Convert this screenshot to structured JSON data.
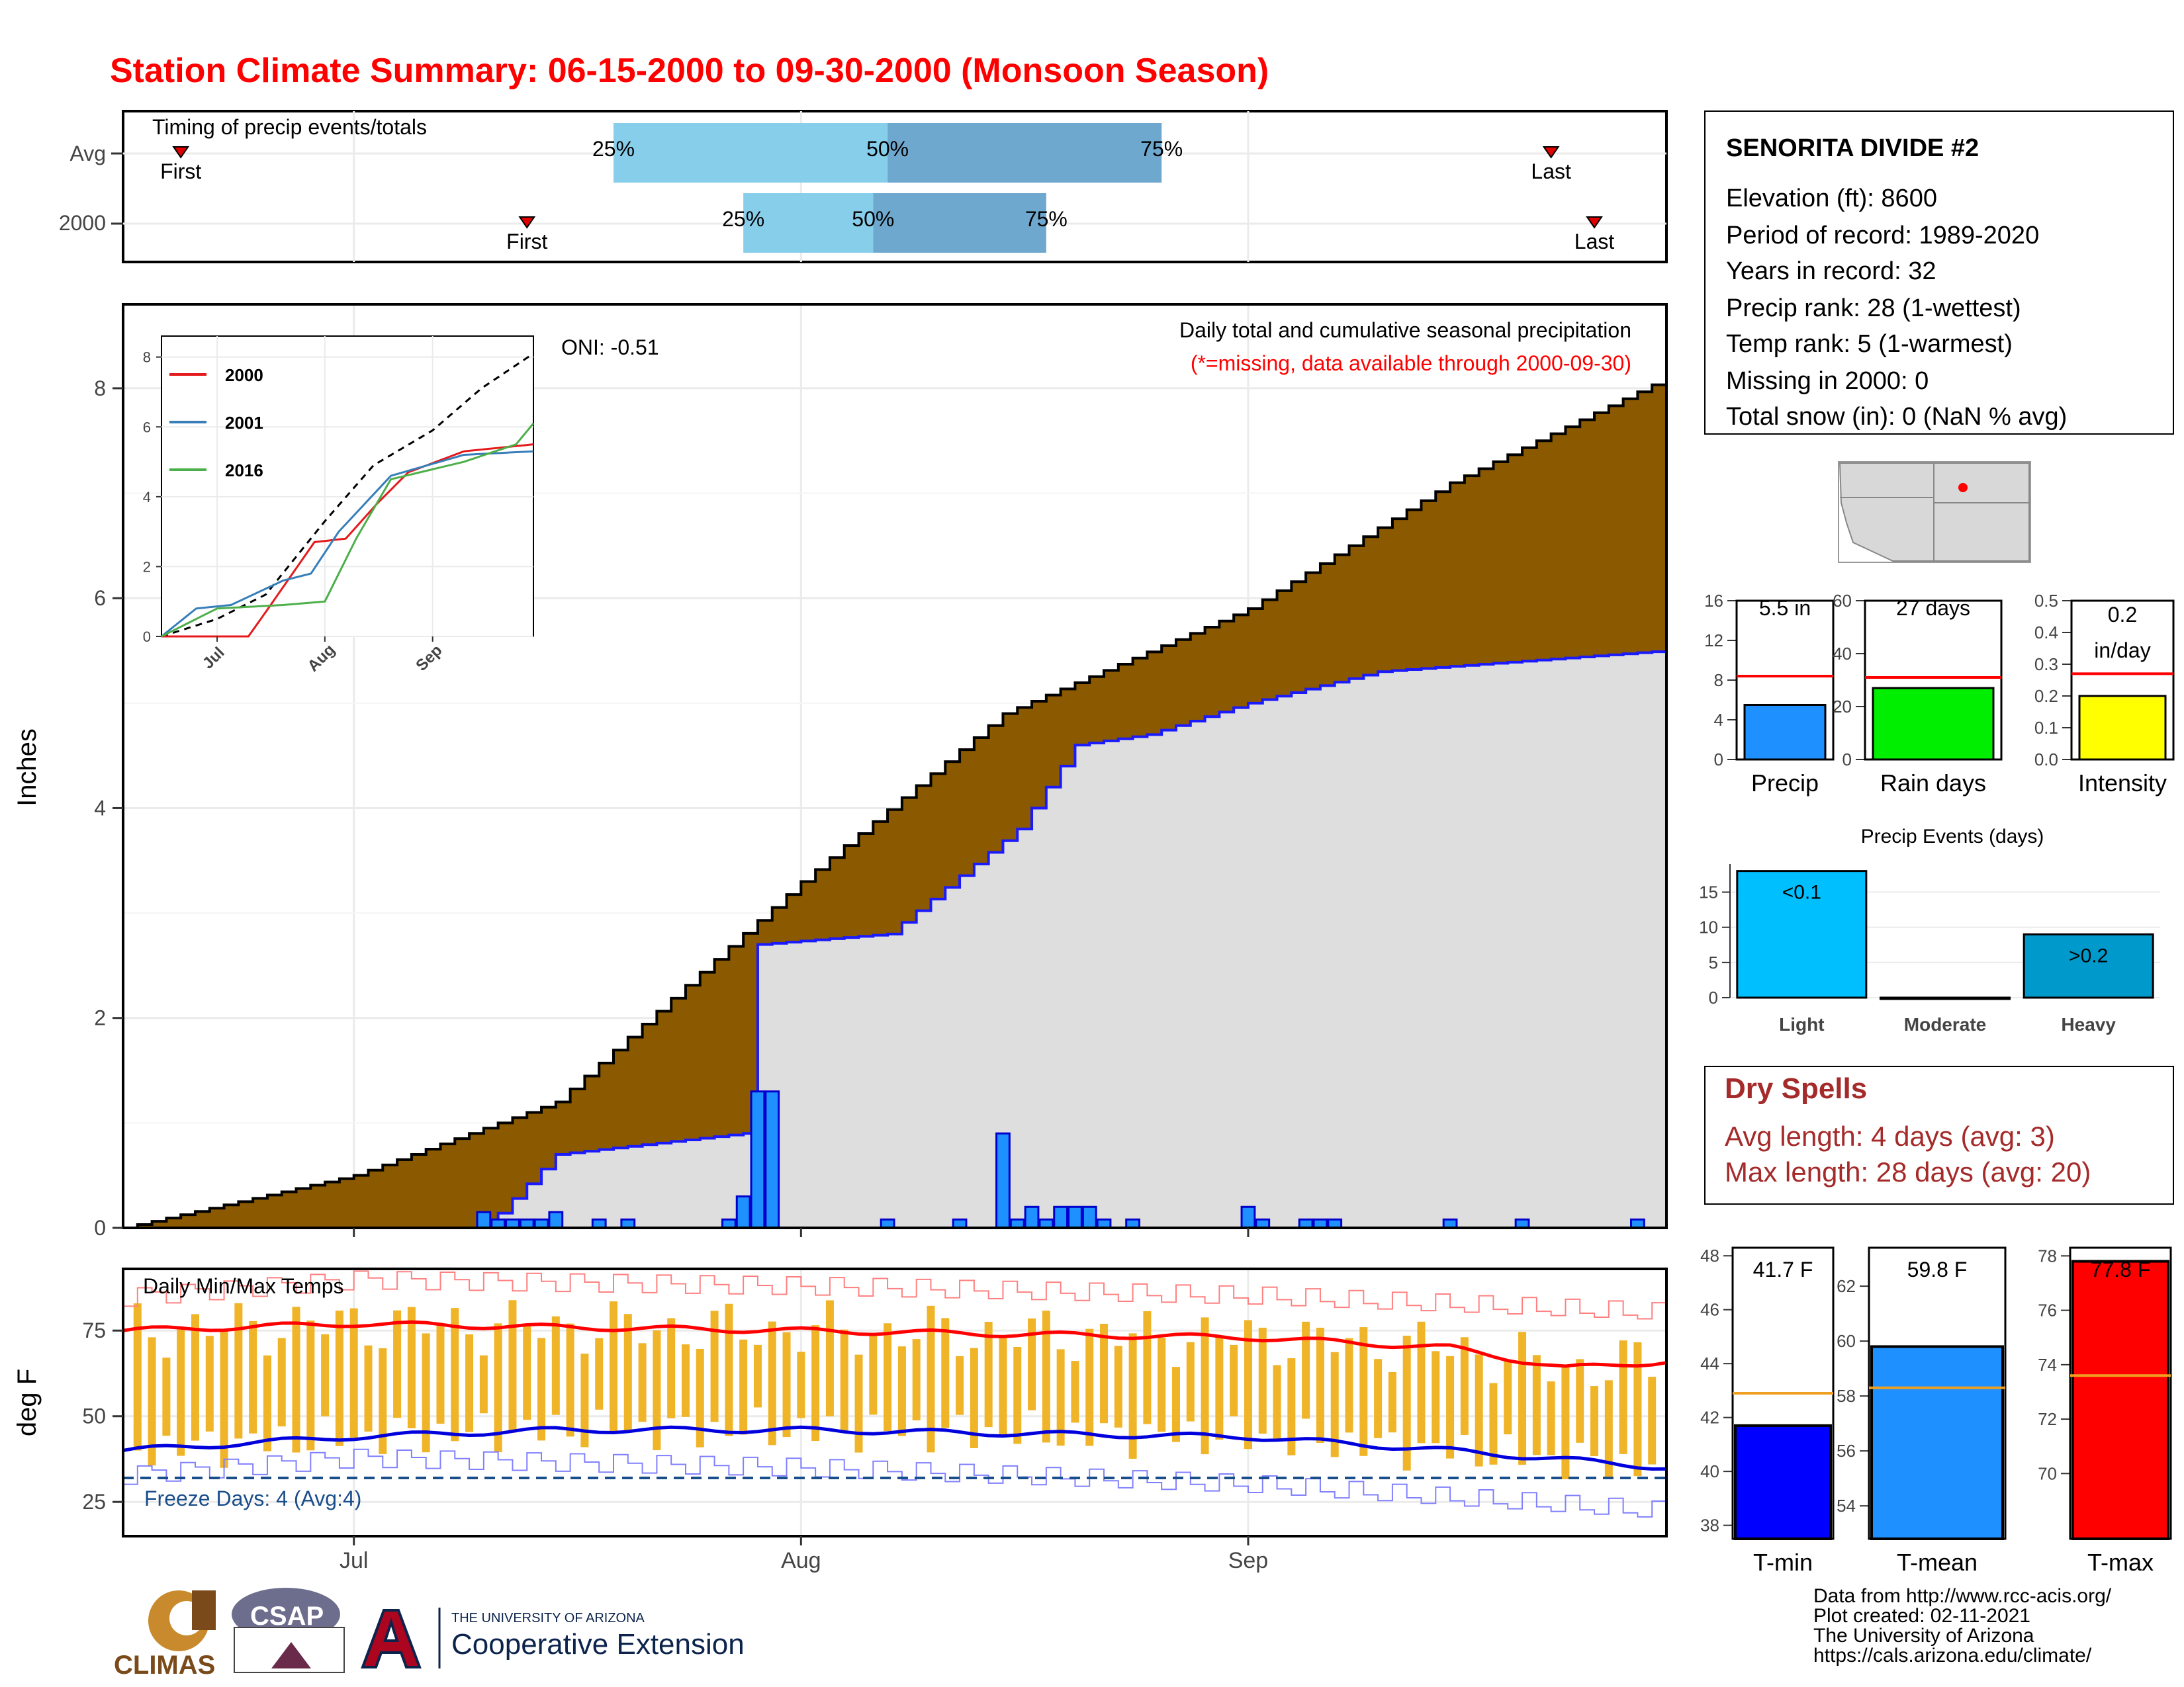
{
  "title": "Station Climate Summary: 06-15-2000 to 09-30-2000 (Monsoon Season)",
  "timing": {
    "panel_title": "Timing of precip events/totals",
    "rows": [
      {
        "label": "Avg",
        "first_label": "First",
        "last_label": "Last",
        "first_day": 4,
        "last_day": 99,
        "p25": 34,
        "p50": 53,
        "p75": 72
      },
      {
        "label": "2000",
        "first_label": "First",
        "last_label": "Last",
        "first_day": 28,
        "last_day": 102,
        "p25": 43,
        "p50": 52,
        "p75": 64
      }
    ],
    "pct_labels": [
      "25%",
      "50%",
      "75%"
    ]
  },
  "main": {
    "ylabel": "Inches",
    "yticks": [
      "0",
      "2",
      "4",
      "6",
      "8"
    ],
    "ylim": [
      0,
      8.8
    ],
    "top_label": "Daily total and cumulative seasonal precipitation",
    "missing_note": "(*=missing, data available through 2000-09-30)",
    "oni": "ONI: -0.51",
    "x_month_labels": [
      "Jul",
      "Aug",
      "Sep"
    ]
  },
  "inset": {
    "legend": [
      {
        "name": "2000",
        "color": "#e41a1c"
      },
      {
        "name": "2001",
        "color": "#377eb8"
      },
      {
        "name": "2016",
        "color": "#4daf4a"
      }
    ],
    "yticks": [
      "0",
      "2",
      "4",
      "6",
      "8"
    ],
    "xticks": [
      "Jul",
      "Aug",
      "Sep"
    ]
  },
  "temps": {
    "panel_title": "Daily Min/Max Temps",
    "ylabel": "deg F",
    "yticks": [
      "25",
      "50",
      "75"
    ],
    "freeze_label": "Freeze Days: 4 (Avg:4)"
  },
  "station": {
    "name": "SENORITA DIVIDE #2",
    "lines": [
      "Elevation (ft): 8600",
      "Period of record: 1989-2020",
      "Years in record: 32",
      "Precip rank: 28 (1-wettest)",
      "Temp rank: 5 (1-warmest)",
      "Missing in 2000: 0",
      "Total snow (in): 0 (NaN % avg)"
    ]
  },
  "summary_bars": [
    {
      "id": "precip",
      "label": "Precip",
      "value_text": "5.5 in",
      "value": 5.5,
      "avg": 8.4,
      "ymax": 16,
      "yticks": [
        "0",
        "4",
        "8",
        "12",
        "16"
      ],
      "color": "#1e90ff"
    },
    {
      "id": "raindays",
      "label": "Rain days",
      "value_text": "27 days",
      "value": 27,
      "avg": 31,
      "ymax": 60,
      "yticks": [
        "0",
        "20",
        "40",
        "60"
      ],
      "color": "#00ee00"
    },
    {
      "id": "intensity",
      "label": "Intensity",
      "value_text": "0.2 in/day",
      "value_line1": "0.2",
      "value_line2": "in/day",
      "value": 0.2,
      "avg": 0.27,
      "ymax": 0.5,
      "yticks": [
        "0.0",
        "0.1",
        "0.2",
        "0.3",
        "0.4",
        "0.5"
      ],
      "color": "#ffff00"
    }
  ],
  "events": {
    "title": "Precip Events (days)",
    "categories": [
      "Light",
      "Moderate",
      "Heavy"
    ],
    "values": [
      18,
      0,
      9
    ],
    "bar_labels": [
      "<0.1",
      "",
      ">0.2"
    ],
    "colors": [
      "#00bfff",
      "#00bfff",
      "#0099cc"
    ],
    "yticks": [
      "0",
      "5",
      "10",
      "15"
    ]
  },
  "dry_spells": {
    "title": "Dry Spells",
    "avg_line": "Avg length: 4 days (avg: 3)",
    "max_line": "Max length: 28 days (avg: 20)"
  },
  "temp_bars": [
    {
      "label": "T-min",
      "value_text": "41.7 F",
      "value": 41.7,
      "avg": 42.9,
      "ymin": 37.5,
      "ymax": 48.3,
      "yticks": [
        "38",
        "40",
        "42",
        "44",
        "46",
        "48"
      ],
      "color": "#0000ff"
    },
    {
      "label": "T-mean",
      "value_text": "59.8 F",
      "value": 59.8,
      "avg": 58.3,
      "ymin": 52.8,
      "ymax": 63.4,
      "yticks": [
        "54",
        "56",
        "58",
        "60",
        "62"
      ],
      "color": "#1e90ff"
    },
    {
      "label": "T-max",
      "value_text": "77.8 F",
      "value": 77.8,
      "avg": 73.6,
      "ymin": 67.6,
      "ymax": 78.3,
      "yticks": [
        "70",
        "72",
        "74",
        "76",
        "78"
      ],
      "color": "#ff0000"
    }
  ],
  "footer": {
    "lines": [
      "Data from http://www.rcc-acis.org/",
      "Plot created: 02-11-2021",
      "The University of Arizona",
      "https://cals.arizona.edu/climate/"
    ],
    "logos": [
      "CLIMAS",
      "CSAP",
      "THE UNIVERSITY OF ARIZONA",
      "Cooperative Extension"
    ]
  },
  "chart_data": [
    {
      "type": "area",
      "title": "Daily total and cumulative seasonal precipitation",
      "ylabel": "Inches",
      "x_range": [
        "2000-06-15",
        "2000-09-30"
      ],
      "ylim": [
        0,
        8.8
      ],
      "series": [
        {
          "name": "cumulative average",
          "x": [
            "2000-06-15",
            "2000-07-01",
            "2000-07-15",
            "2000-08-01",
            "2000-08-15",
            "2000-09-01",
            "2000-09-15",
            "2000-09-30"
          ],
          "values": [
            0.0,
            0.5,
            1.2,
            3.3,
            4.9,
            5.9,
            7.1,
            8.1
          ]
        },
        {
          "name": "cumulative 2000",
          "x": [
            "2000-06-15",
            "2000-07-10",
            "2000-07-15",
            "2000-07-28",
            "2000-07-29",
            "2000-08-07",
            "2000-08-16",
            "2000-08-20",
            "2000-08-25",
            "2000-09-01",
            "2000-09-10",
            "2000-09-20",
            "2000-09-30"
          ],
          "values": [
            0.0,
            0.0,
            0.7,
            0.9,
            2.7,
            2.8,
            3.8,
            4.6,
            4.7,
            5.0,
            5.3,
            5.4,
            5.5
          ]
        },
        {
          "name": "daily 2000",
          "x": [
            "2000-07-10",
            "2000-07-11",
            "2000-07-12",
            "2000-07-13",
            "2000-07-14",
            "2000-07-15",
            "2000-07-18",
            "2000-07-20",
            "2000-07-27",
            "2000-07-28",
            "2000-07-29",
            "2000-07-30",
            "2000-08-07",
            "2000-08-12",
            "2000-08-15",
            "2000-08-16",
            "2000-08-17",
            "2000-08-18",
            "2000-08-19",
            "2000-08-20",
            "2000-08-21",
            "2000-08-22",
            "2000-08-24",
            "2000-09-01",
            "2000-09-02",
            "2000-09-05",
            "2000-09-06",
            "2000-09-07",
            "2000-09-15",
            "2000-09-20",
            "2000-09-28"
          ],
          "values": [
            0.15,
            0.08,
            0.08,
            0.08,
            0.08,
            0.15,
            0.08,
            0.08,
            0.08,
            0.3,
            1.3,
            1.3,
            0.08,
            0.08,
            0.9,
            0.08,
            0.2,
            0.08,
            0.2,
            0.2,
            0.2,
            0.08,
            0.08,
            0.2,
            0.08,
            0.08,
            0.08,
            0.08,
            0.08,
            0.08,
            0.08
          ]
        }
      ]
    },
    {
      "type": "line",
      "title": "",
      "ylim": [
        0,
        8.6
      ],
      "x_range": [
        "2000-06-15",
        "2000-09-30"
      ],
      "series": [
        {
          "name": "",
          "color": "#000000",
          "dashed": true,
          "x": [
            "2000-06-15",
            "2000-07-01",
            "2000-07-15",
            "2000-08-01",
            "2000-08-15",
            "2000-09-01",
            "2000-09-15",
            "2000-09-30"
          ],
          "values": [
            0.0,
            0.5,
            1.2,
            3.3,
            4.9,
            5.9,
            7.1,
            8.1
          ]
        },
        {
          "name": "2000",
          "color": "#e41a1c",
          "x": [
            "2000-06-15",
            "2000-07-10",
            "2000-07-15",
            "2000-07-29",
            "2000-08-07",
            "2000-08-16",
            "2000-08-25",
            "2000-09-10",
            "2000-09-30"
          ],
          "values": [
            0.0,
            0.0,
            0.7,
            2.7,
            2.8,
            3.8,
            4.7,
            5.3,
            5.5
          ]
        },
        {
          "name": "2001",
          "color": "#377eb8",
          "x": [
            "2000-06-15",
            "2000-06-25",
            "2000-07-05",
            "2000-07-20",
            "2000-07-28",
            "2000-08-05",
            "2000-08-20",
            "2000-09-10",
            "2000-09-30"
          ],
          "values": [
            0.0,
            0.8,
            0.9,
            1.6,
            1.8,
            3.0,
            4.6,
            5.2,
            5.3
          ]
        },
        {
          "name": "2016",
          "color": "#4daf4a",
          "x": [
            "2000-06-15",
            "2000-07-01",
            "2000-07-20",
            "2000-08-01",
            "2000-08-10",
            "2000-08-20",
            "2000-09-10",
            "2000-09-25",
            "2000-09-30"
          ],
          "values": [
            0.0,
            0.8,
            0.9,
            1.0,
            2.8,
            4.5,
            5.0,
            5.5,
            6.1
          ]
        }
      ]
    },
    {
      "type": "line",
      "title": "Daily Min/Max Temps",
      "ylabel": "deg F",
      "ylim": [
        15,
        93
      ],
      "x_range": [
        "2000-06-15",
        "2000-09-30"
      ],
      "freeze_threshold": 32,
      "series": [
        {
          "name": "",
          "color": "#ff0000",
          "x": [
            "2000-06-15",
            "2000-07-01",
            "2000-07-15",
            "2000-08-01",
            "2000-08-15",
            "2000-09-01",
            "2000-09-15",
            "2000-09-23",
            "2000-09-30"
          ],
          "values": [
            75,
            77,
            76,
            75,
            74,
            73,
            70,
            64,
            66
          ]
        },
        {
          "name": "",
          "color": "#0000ff",
          "x": [
            "2000-06-15",
            "2000-07-01",
            "2000-07-15",
            "2000-08-01",
            "2000-08-15",
            "2000-09-01",
            "2000-09-15",
            "2000-09-30"
          ],
          "values": [
            40,
            44,
            46,
            46,
            45,
            44,
            40,
            35
          ]
        },
        {
          "name": "",
          "color": "#ff8080",
          "x": [
            "2000-06-15",
            "2000-07-01",
            "2000-08-01",
            "2000-09-01",
            "2000-09-30"
          ],
          "values": [
            85,
            90,
            88,
            85,
            80
          ]
        },
        {
          "name": "",
          "color": "#8080ff",
          "x": [
            "2000-06-15",
            "2000-07-01",
            "2000-08-01",
            "2000-09-01",
            "2000-09-30"
          ],
          "values": [
            33,
            38,
            35,
            30,
            22
          ]
        }
      ]
    },
    {
      "type": "bar",
      "title": "Precip Events (days)",
      "categories": [
        "Light",
        "Moderate",
        "Heavy"
      ],
      "values": [
        18,
        0,
        9
      ],
      "ylim": [
        0,
        19
      ]
    }
  ]
}
